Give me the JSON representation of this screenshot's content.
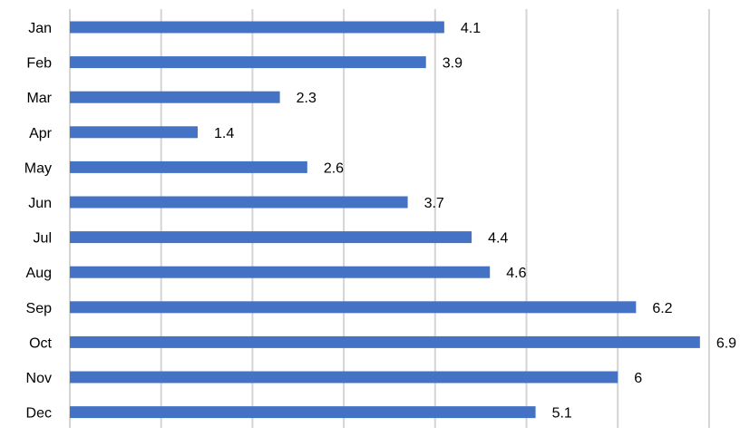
{
  "chart_data": {
    "type": "bar",
    "orientation": "horizontal",
    "categories": [
      "Jan",
      "Feb",
      "Mar",
      "Apr",
      "May",
      "Jun",
      "Jul",
      "Aug",
      "Sep",
      "Oct",
      "Nov",
      "Dec"
    ],
    "values": [
      4.1,
      3.9,
      2.3,
      1.4,
      2.6,
      3.7,
      4.4,
      4.6,
      6.2,
      6.9,
      6,
      5.1
    ],
    "data_labels": [
      "4.1",
      "3.9",
      "2.3",
      "1.4",
      "2.6",
      "3.7",
      "4.4",
      "4.6",
      "6.2",
      "6.9",
      "6",
      "5.1"
    ],
    "title": "",
    "xlabel": "",
    "ylabel": "",
    "xlim": [
      0,
      7
    ],
    "grid": true,
    "legend": "none",
    "bar_color": "#4472c4",
    "grid_color": "#d4d4d4"
  }
}
